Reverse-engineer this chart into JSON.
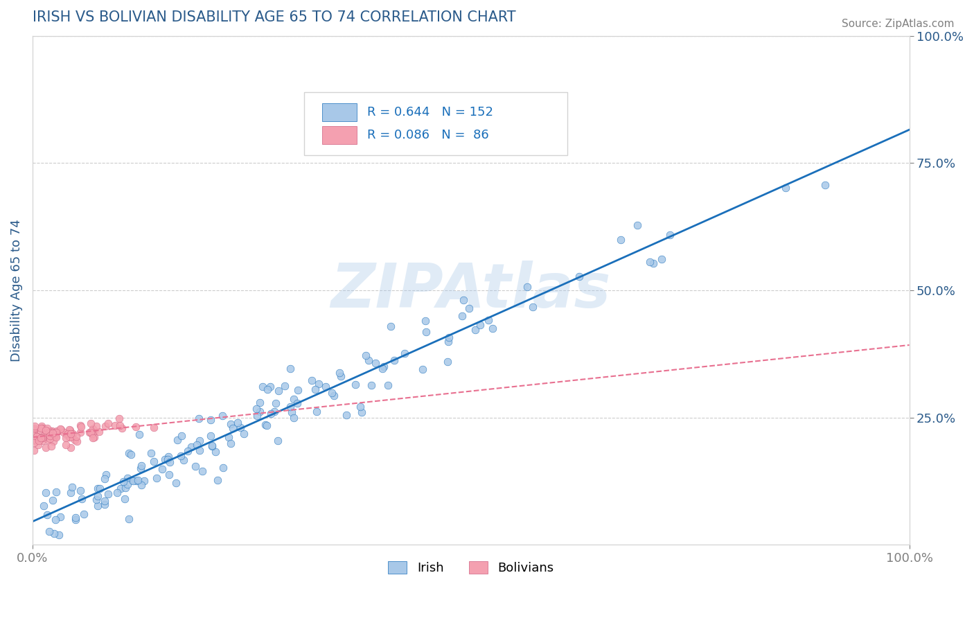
{
  "title": "IRISH VS BOLIVIAN DISABILITY AGE 65 TO 74 CORRELATION CHART",
  "source_text": "Source: ZipAtlas.com",
  "xlabel": "",
  "ylabel": "Disability Age 65 to 74",
  "watermark": "ZIPAtlas",
  "irish_R": 0.644,
  "irish_N": 152,
  "bolivian_R": 0.086,
  "bolivian_N": 86,
  "irish_color": "#a8c8e8",
  "bolivian_color": "#f4a0b0",
  "irish_line_color": "#1a6fba",
  "bolivian_line_color": "#e87090",
  "title_color": "#2a5a8a",
  "axis_label_color": "#2a5a8a",
  "tick_color": "#2a5a8a",
  "right_tick_color": "#2a5a8a",
  "background_color": "#ffffff",
  "grid_color": "#cccccc",
  "legend_R_color": "#1a6fba",
  "irish_seed": 42,
  "bolivian_seed": 7,
  "xlim": [
    0,
    1
  ],
  "ylim": [
    0,
    1
  ],
  "xticklabels": [
    "0.0%",
    "100.0%"
  ],
  "yticklabels_right": [
    "25.0%",
    "50.0%",
    "75.0%",
    "100.0%"
  ]
}
